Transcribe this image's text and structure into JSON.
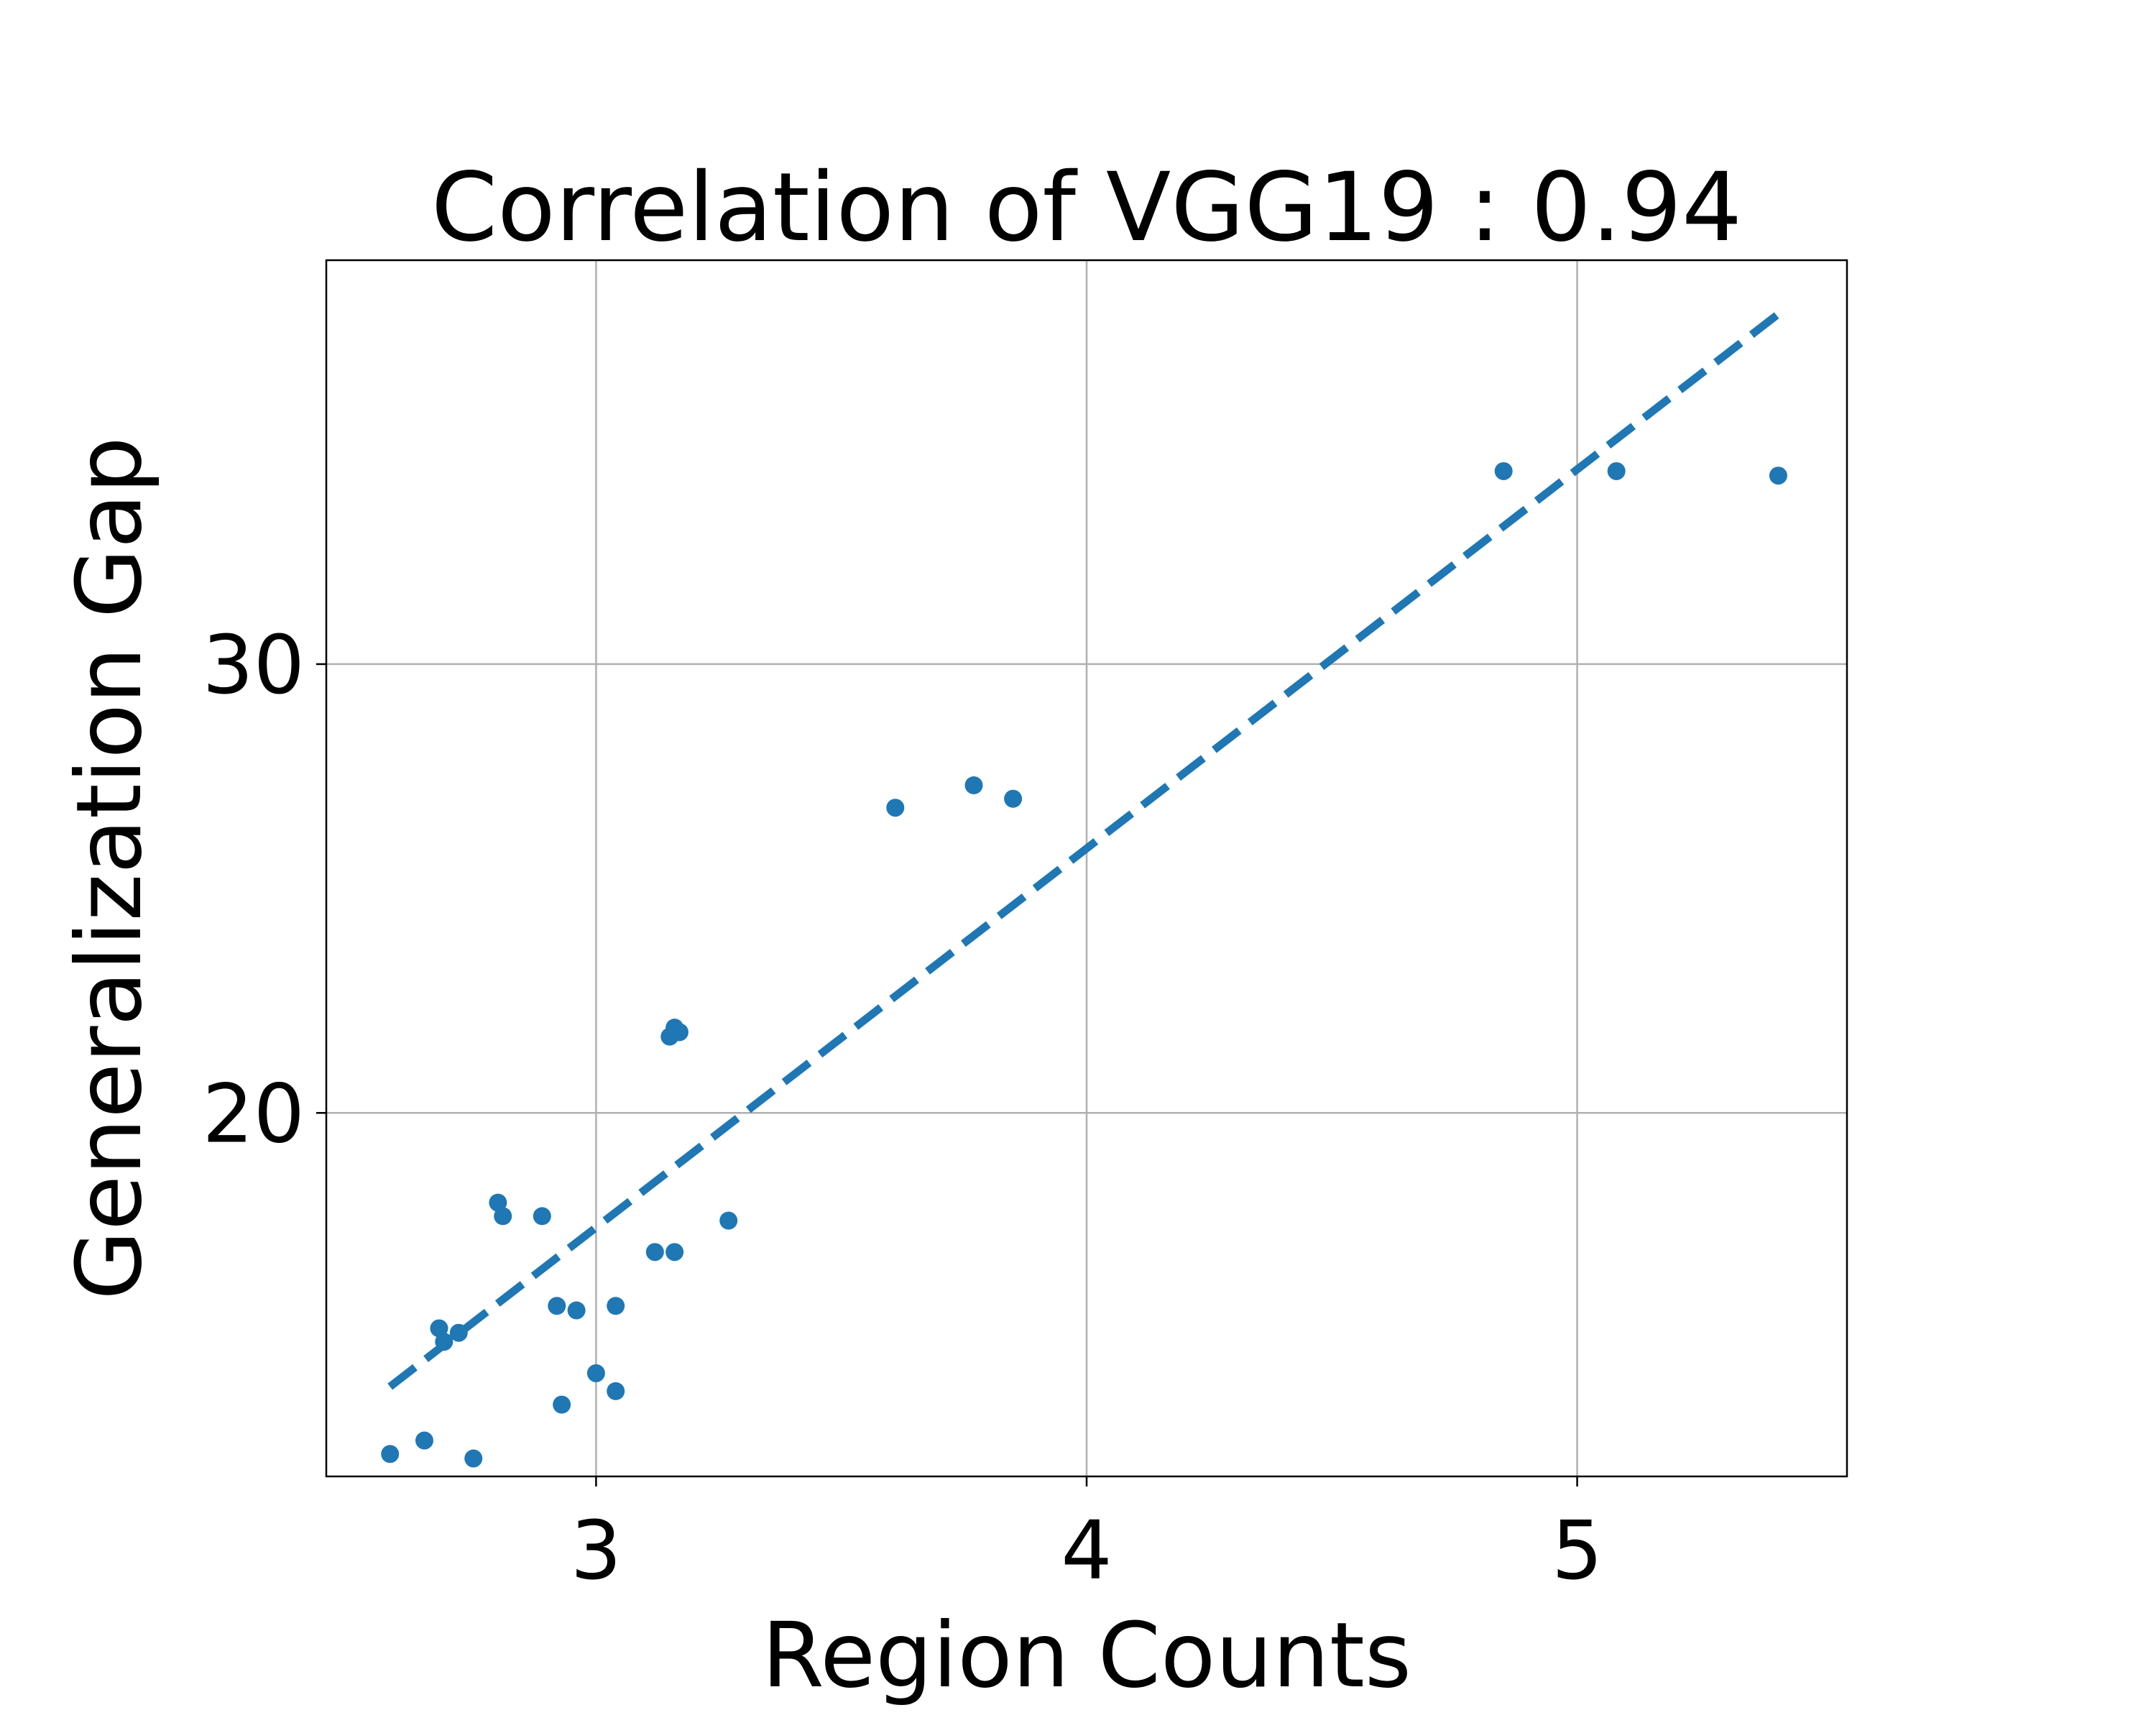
{
  "chart_data": {
    "type": "scatter",
    "title": "Correlation of VGG19 : 0.94",
    "xlabel": "Region Counts",
    "ylabel": "Generalization Gap",
    "xlim": [
      2.45,
      5.55
    ],
    "ylim": [
      11.9,
      39.0
    ],
    "xticks": [
      {
        "value": 3,
        "label": "3"
      },
      {
        "value": 4,
        "label": "4"
      },
      {
        "value": 5,
        "label": "5"
      }
    ],
    "yticks": [
      {
        "value": 20,
        "label": "20"
      },
      {
        "value": 30,
        "label": "30"
      }
    ],
    "grid": true,
    "color": "#1f77b4",
    "series": [
      {
        "kind": "points",
        "points": [
          {
            "x": 2.58,
            "y": 12.4
          },
          {
            "x": 2.65,
            "y": 12.7
          },
          {
            "x": 2.68,
            "y": 15.2
          },
          {
            "x": 2.69,
            "y": 14.9
          },
          {
            "x": 2.72,
            "y": 15.1
          },
          {
            "x": 2.75,
            "y": 12.3
          },
          {
            "x": 2.8,
            "y": 18.0
          },
          {
            "x": 2.81,
            "y": 17.7
          },
          {
            "x": 2.89,
            "y": 17.7
          },
          {
            "x": 2.92,
            "y": 15.7
          },
          {
            "x": 2.93,
            "y": 13.5
          },
          {
            "x": 2.96,
            "y": 15.6
          },
          {
            "x": 3.0,
            "y": 14.2
          },
          {
            "x": 3.04,
            "y": 13.8
          },
          {
            "x": 3.04,
            "y": 15.7
          },
          {
            "x": 3.12,
            "y": 16.9
          },
          {
            "x": 3.15,
            "y": 21.7
          },
          {
            "x": 3.16,
            "y": 21.9
          },
          {
            "x": 3.16,
            "y": 16.9
          },
          {
            "x": 3.17,
            "y": 21.8
          },
          {
            "x": 3.27,
            "y": 17.6
          },
          {
            "x": 3.61,
            "y": 26.8
          },
          {
            "x": 3.77,
            "y": 27.3
          },
          {
            "x": 3.85,
            "y": 27.0
          },
          {
            "x": 4.85,
            "y": 34.3
          },
          {
            "x": 5.08,
            "y": 34.3
          },
          {
            "x": 5.41,
            "y": 34.2
          }
        ]
      },
      {
        "kind": "fit-line",
        "style": "dashed",
        "points": [
          {
            "x": 2.58,
            "y": 13.9
          },
          {
            "x": 5.41,
            "y": 37.8
          }
        ]
      }
    ]
  }
}
